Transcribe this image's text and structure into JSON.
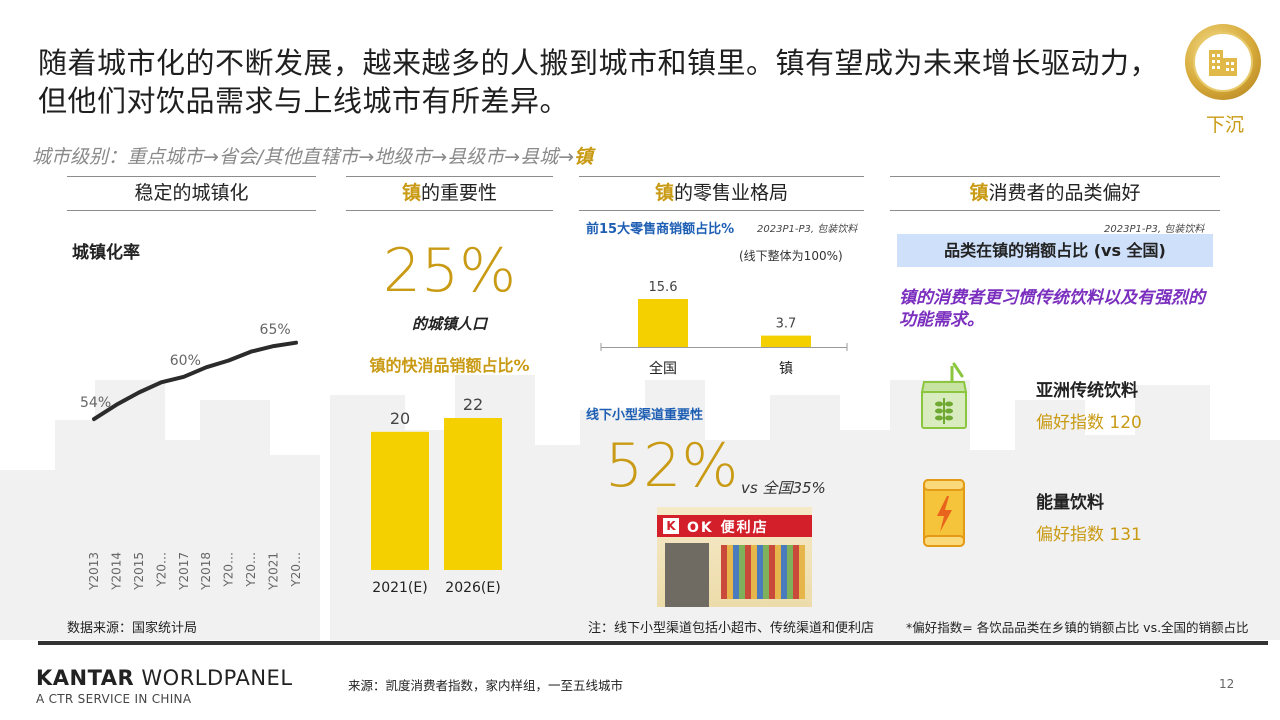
{
  "headline": "随着城市化的不断发展，越来越多的人搬到城市和镇里。镇有望成为未来增长驱动力，但他们对饮品需求与上线城市有所差异。",
  "badge": {
    "label": "下沉",
    "icon": "building-icon"
  },
  "city_level": {
    "text": "城市级别：重点城市→省会/其他直辖市→地级市→县级市→县城→",
    "highlight": "镇"
  },
  "col1": {
    "header": "稳定的城镇化",
    "subtitle": "城镇化率",
    "source": "数据来源：国家统计局"
  },
  "col2": {
    "header_hl": "镇",
    "header_rest": "的重要性",
    "big_value": "25%",
    "big_caption": "的城镇人口",
    "fmcg_title": "镇的快消品销额占比%"
  },
  "col3": {
    "header_hl": "镇",
    "header_rest": "的零售业格局",
    "top15_title": "前15大零售商销额占比%",
    "top15_note": "2023P1-P3, 包装饮料",
    "offline_note": "(线下整体为100%)",
    "small_channel_title": "线下小型渠道重要性",
    "big_value": "52%",
    "vs_text": "vs 全国35%",
    "store_sign": "OK 便利店",
    "store_logo": "K",
    "footnote": "注：线下小型渠道包括小超市、传统渠道和便利店"
  },
  "col4": {
    "header_hl": "镇",
    "header_rest": "消费者的品类偏好",
    "note": "2023P1-P3, 包装饮料",
    "banner": "品类在镇的销额占比 (vs 全国)",
    "insight": "镇的消费者更习惯传统饮料以及有强烈的功能需求。",
    "items": [
      {
        "name": "亚洲传统饮料",
        "index_text": "偏好指数 120",
        "icon": "grain-drink-carton-icon"
      },
      {
        "name": "能量饮料",
        "index_text": "偏好指数 131",
        "icon": "energy-drink-can-icon"
      }
    ],
    "footnote": "*偏好指数= 各饮品品类在乡镇的销额占比 vs.全国的销额占比"
  },
  "footer": {
    "logo_bold": "KANTAR",
    "logo_light": " WORLDPANEL",
    "logo_sub": "A CTR SERVICE IN CHINA",
    "source": "来源：凯度消费者指数，家内样组，一至五线城市",
    "page_number": "12"
  },
  "colors": {
    "gold": "#c99a13",
    "bar_yellow": "#f5d000",
    "blue": "#1e5fb4",
    "purple": "#7b2fbe",
    "banner_blue": "#cfe0fa"
  },
  "chart_data": [
    {
      "type": "line",
      "title": "城镇化率",
      "x": [
        "Y2013",
        "Y2014",
        "Y2015",
        "Y20…",
        "Y2017",
        "Y2018",
        "Y20…",
        "Y20…",
        "Y2021",
        "Y20…"
      ],
      "series": [
        {
          "values": [
            54,
            56.1,
            57.9,
            59.4,
            60.2,
            61.6,
            62.6,
            63.9,
            64.7,
            65.2
          ]
        }
      ],
      "point_labels": [
        {
          "index": 0,
          "text": "54%"
        },
        {
          "index": 4,
          "text": "60%"
        },
        {
          "index": 8,
          "text": "65%"
        }
      ],
      "ylim": [
        48,
        70
      ],
      "grid": false,
      "legend": "none"
    },
    {
      "type": "bar",
      "title": "镇的快消品销额占比%",
      "categories": [
        "2021(E)",
        "2026(E)"
      ],
      "values": [
        20,
        22
      ],
      "ylim": [
        0,
        22
      ]
    },
    {
      "type": "bar",
      "title": "前15大零售商销额占比%",
      "categories": [
        "全国",
        "镇"
      ],
      "values": [
        15.6,
        3.7
      ],
      "ylim": [
        0,
        15.6
      ]
    }
  ]
}
